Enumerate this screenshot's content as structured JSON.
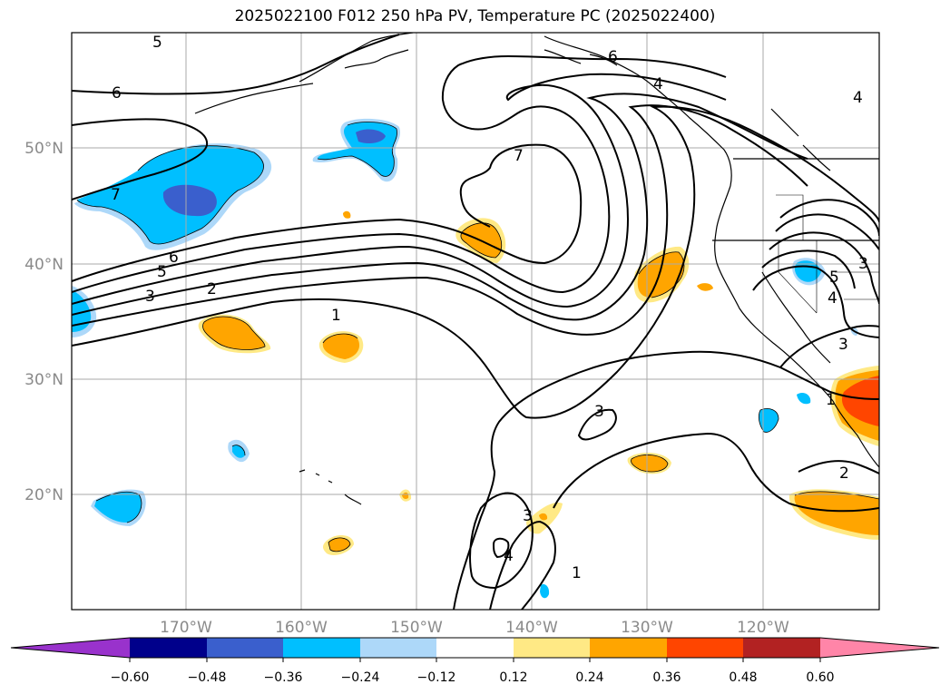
{
  "title": "2025022100 F012 250 hPa PV, Temperature PC (2025022400)",
  "map": {
    "lat_labels": [
      "50°N",
      "40°N",
      "30°N",
      "20°N"
    ],
    "lon_labels": [
      "170°W",
      "160°W",
      "150°W",
      "140°W",
      "130°W",
      "120°W"
    ],
    "contour_labels": [
      "5",
      "6",
      "7",
      "6",
      "5",
      "3",
      "2",
      "1",
      "7",
      "6",
      "4",
      "4",
      "3",
      "3",
      "1",
      "4",
      "5",
      "4",
      "3",
      "1",
      "2",
      "3"
    ]
  },
  "colorbar": {
    "ticks": [
      "−0.60",
      "−0.48",
      "−0.36",
      "−0.24",
      "−0.12",
      "0.12",
      "0.24",
      "0.36",
      "0.48",
      "0.60"
    ],
    "colors": {
      "lt_min": "#9932cc",
      "n060": "#00008b",
      "n048": "#3a5fcd",
      "n036": "#00bfff",
      "n024": "#add8f9",
      "n012": "#ffffff",
      "p012": "#ffe985",
      "p024": "#ffa500",
      "p036": "#ff4500",
      "p048": "#b22222",
      "gt_max": "#ff85a8"
    }
  }
}
